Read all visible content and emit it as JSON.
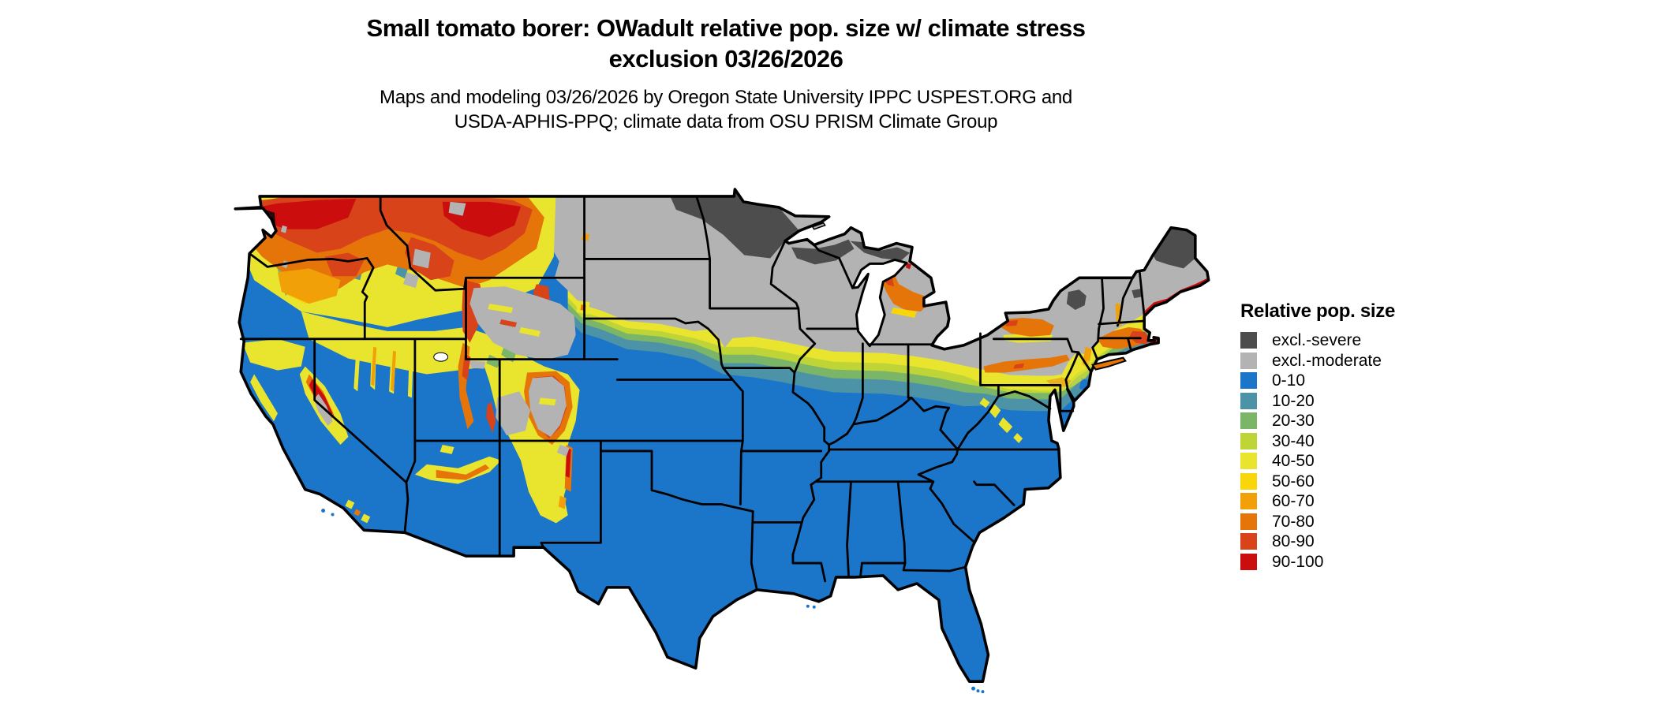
{
  "title": {
    "line1": "Small tomato borer: OWadult relative pop. size w/ climate stress",
    "line2": "exclusion 03/26/2026"
  },
  "subtitle": {
    "line1": "Maps and modeling 03/26/2026 by Oregon State University IPPC USPEST.ORG and",
    "line2": "USDA-APHIS-PPQ; climate data from OSU PRISM Climate Group"
  },
  "legend": {
    "title": "Relative pop. size",
    "items": [
      {
        "label": "excl.-severe",
        "color": "#4D4D4D"
      },
      {
        "label": "excl.-moderate",
        "color": "#B3B3B3"
      },
      {
        "label": "0-10",
        "color": "#1B75C9"
      },
      {
        "label": "10-20",
        "color": "#4D93A8"
      },
      {
        "label": "20-30",
        "color": "#7AB568"
      },
      {
        "label": "30-40",
        "color": "#BFD437"
      },
      {
        "label": "40-50",
        "color": "#E9E52F"
      },
      {
        "label": "50-60",
        "color": "#F8D60A"
      },
      {
        "label": "60-70",
        "color": "#F2A007"
      },
      {
        "label": "70-80",
        "color": "#E67509"
      },
      {
        "label": "80-90",
        "color": "#D8431A"
      },
      {
        "label": "90-100",
        "color": "#CB0D0D"
      }
    ]
  },
  "map": {
    "region": "Contiguous United States",
    "projection": "unprojected lat/lon raster map",
    "border_color": "#000000",
    "background": "#FFFFFF"
  }
}
